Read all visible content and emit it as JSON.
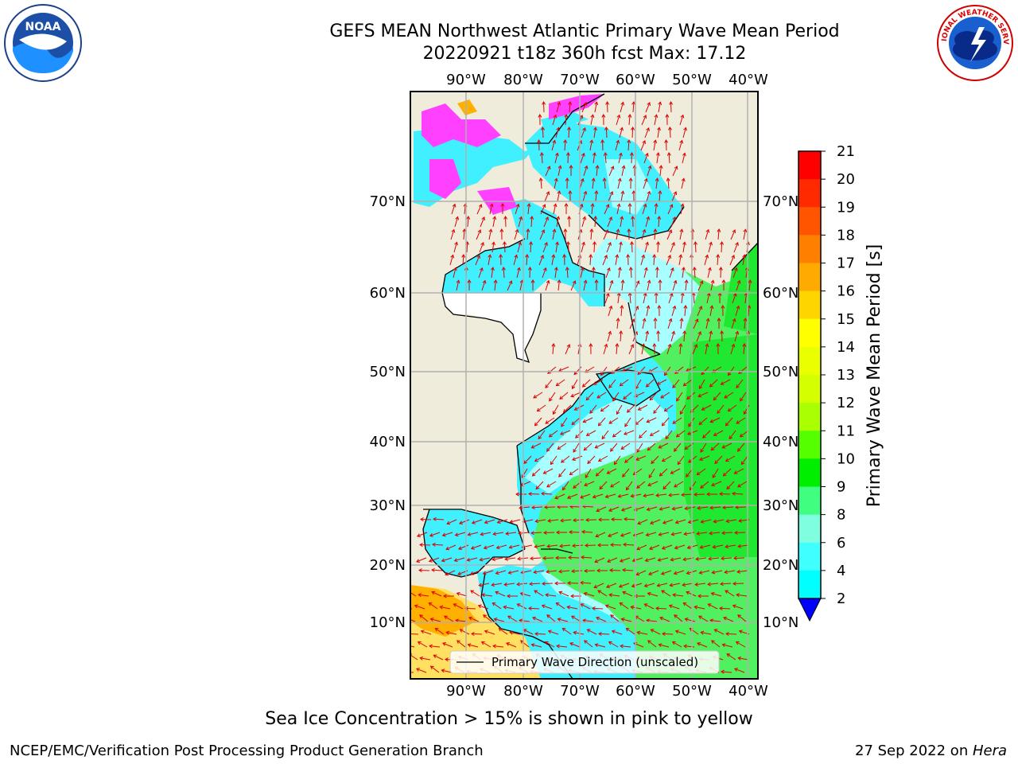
{
  "title_line1": "GEFS MEAN Northwest Atlantic Primary Wave Mean Period",
  "title_line2": "20220921 t18z 360h fcst   Max: 17.12",
  "top_lon_labels": [
    "90°W",
    "80°W",
    "70°W",
    "60°W",
    "50°W",
    "40°W"
  ],
  "bottom_lon_labels": [
    "90°W",
    "80°W",
    "70°W",
    "60°W",
    "50°W",
    "40°W"
  ],
  "left_lat_labels": [
    "70°N",
    "60°N",
    "50°N",
    "40°N",
    "30°N",
    "20°N",
    "10°N"
  ],
  "right_lat_labels": [
    "70°N",
    "60°N",
    "50°N",
    "40°N",
    "30°N",
    "20°N",
    "10°N"
  ],
  "legend_label": "Primary Wave Direction (unscaled)",
  "colorbar": {
    "label": "Primary Wave Mean Period [s]",
    "ticks": [
      "21",
      "20",
      "19",
      "18",
      "17",
      "16",
      "15",
      "14",
      "13",
      "12",
      "11",
      "10",
      "9",
      "8",
      "6",
      "4",
      "2"
    ],
    "colors": [
      "#ff0000",
      "#ff2a00",
      "#ff5500",
      "#ff8000",
      "#ffaa00",
      "#ffd500",
      "#ffff00",
      "#eaff00",
      "#d4ff00",
      "#aaff00",
      "#55ff00",
      "#00ee00",
      "#40ff80",
      "#80ffe0",
      "#40ffff",
      "#00ffff",
      "#00e5ff",
      "#0080ff"
    ],
    "under_color": "#0000ff"
  },
  "colors": {
    "land": "#efecdc",
    "grid": "#b0b0b0",
    "arrow": "#e00000",
    "cyan": "#40f0ff",
    "light_cyan": "#a8ffff",
    "green": "#50f060",
    "bright_green": "#20e830",
    "ice_pink": "#ff40ff",
    "orange": "#ffb000",
    "yellow": "#ffe060"
  },
  "caption": "Sea Ice Concentration > 15% is shown in pink to yellow",
  "credit": "NCEP/EMC/Verification Post Processing Product Generation Branch",
  "date": "27 Sep 2022 on ",
  "host": "Hera",
  "noaa_logo_text": "NOAA",
  "nws_logo_text": "NATIONAL WEATHER SERVICE"
}
